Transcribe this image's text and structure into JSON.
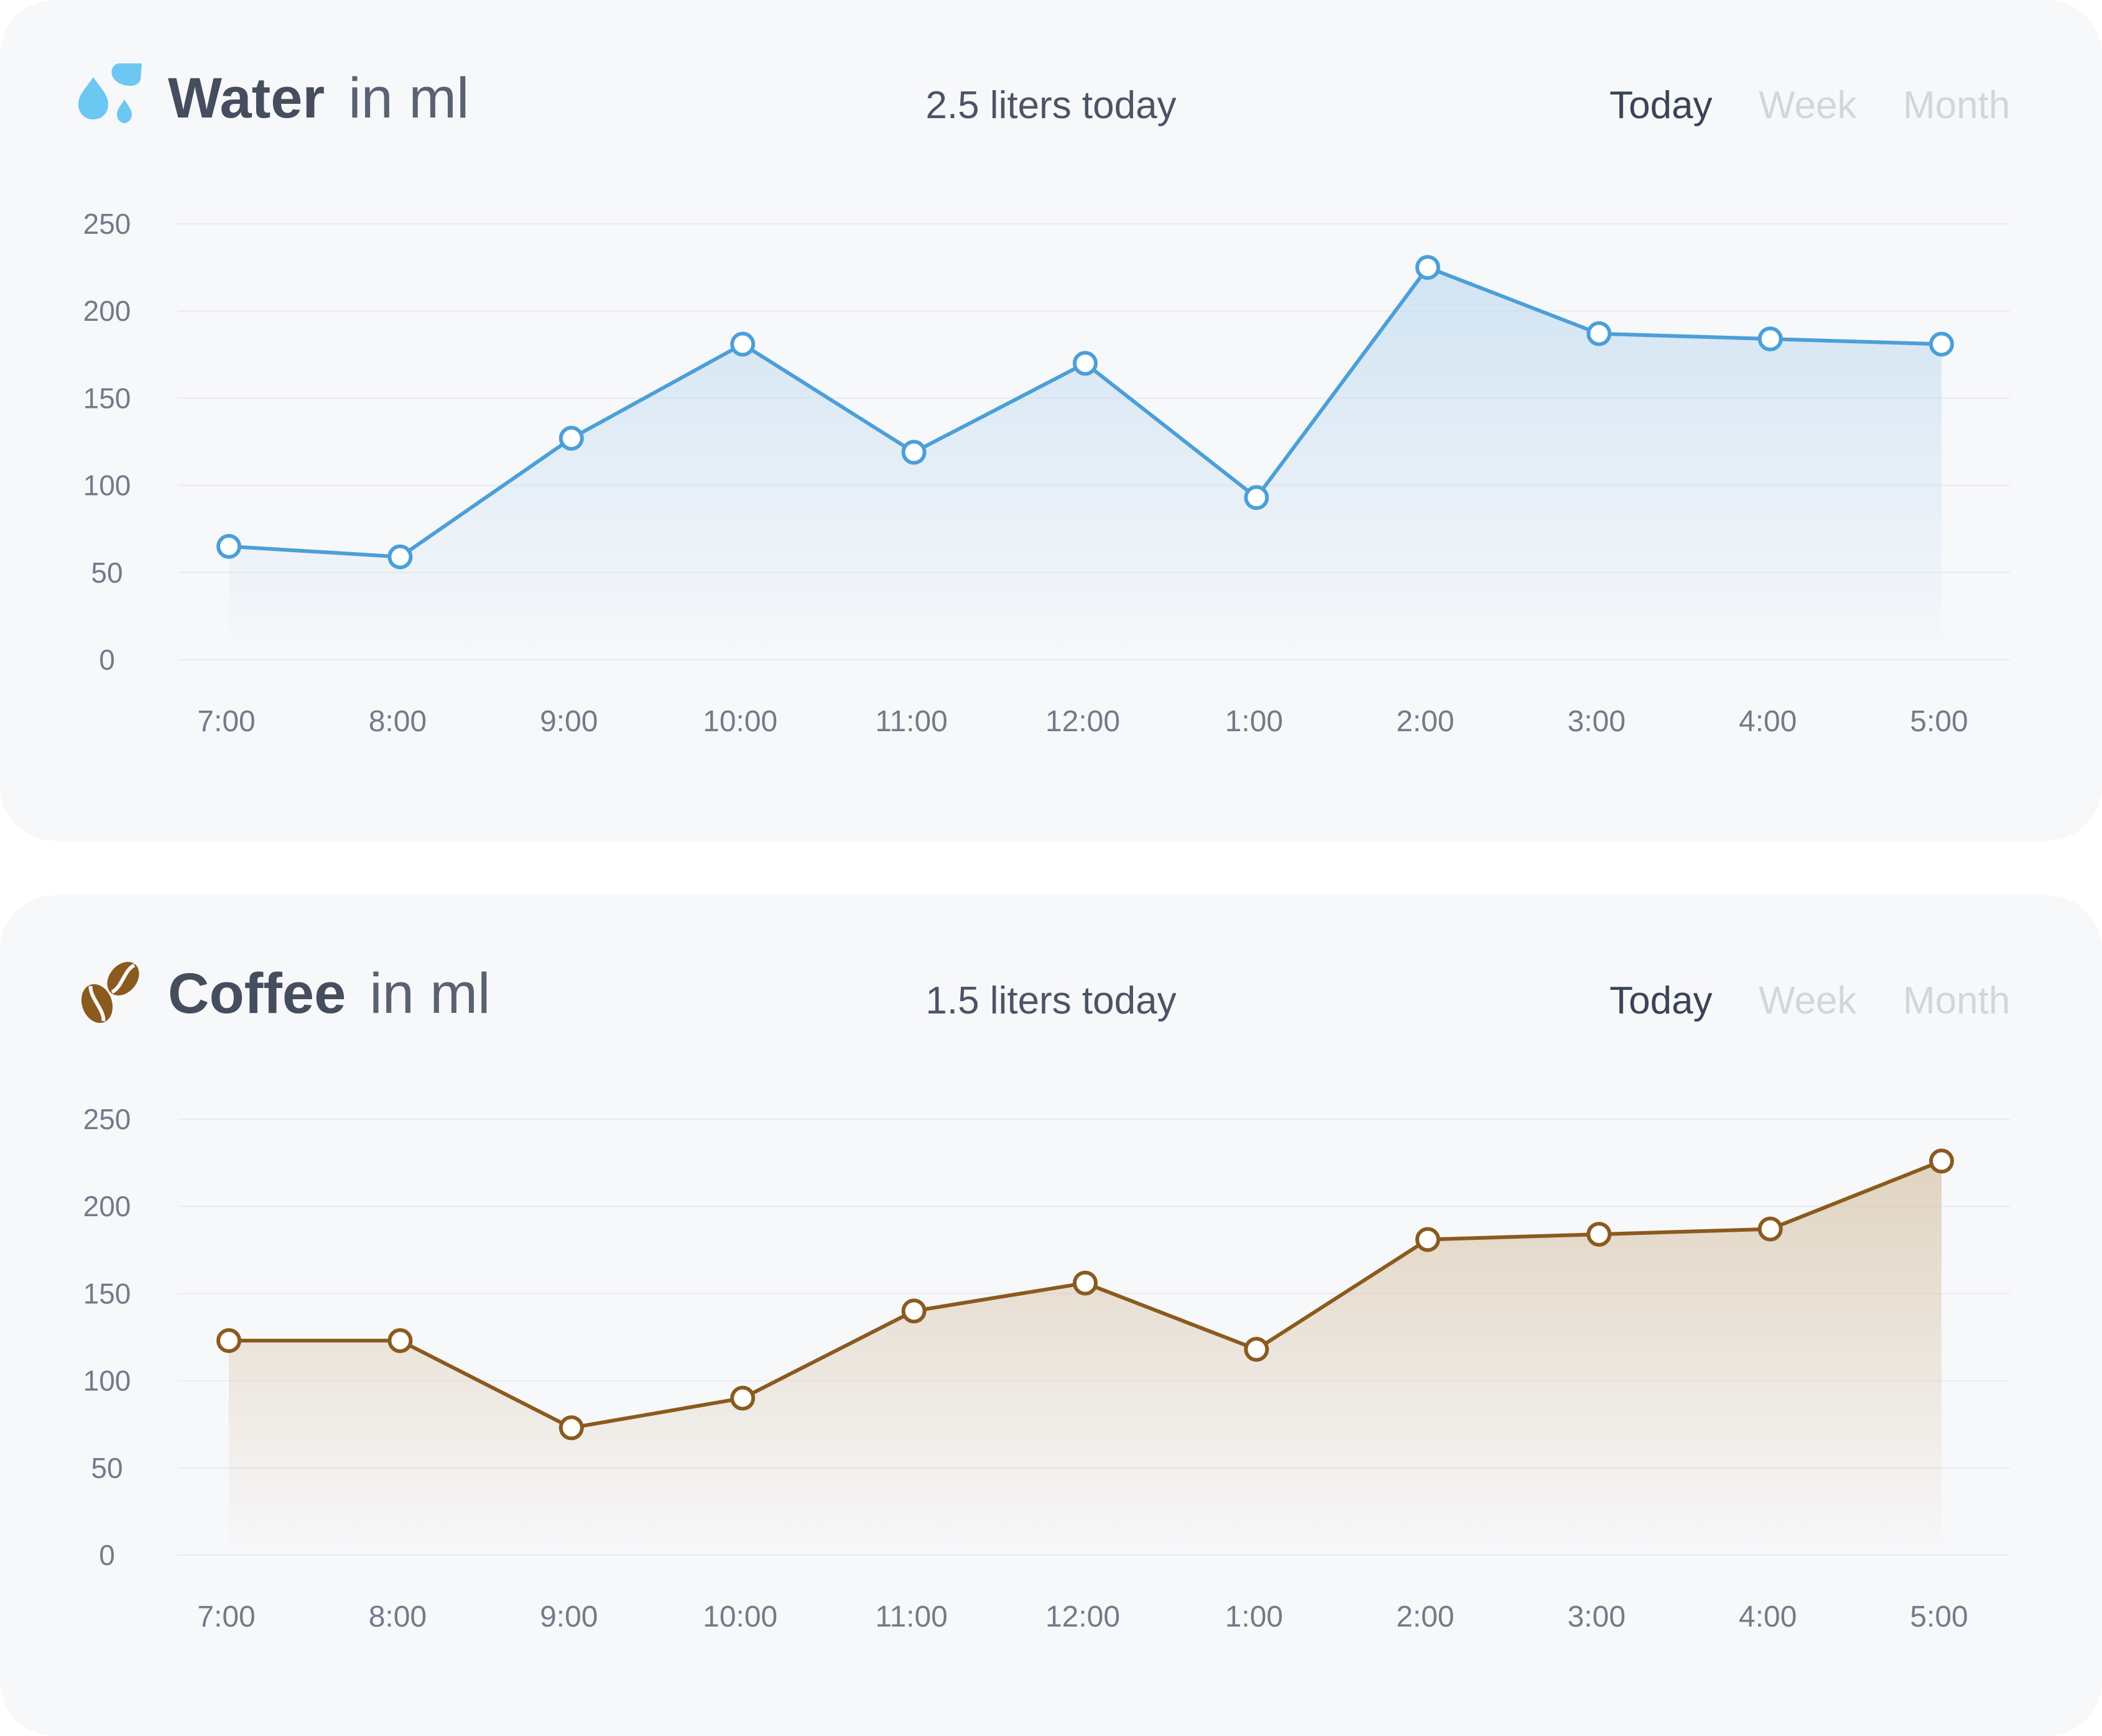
{
  "cards": [
    {
      "id": "water",
      "title": "Water",
      "unit": "in ml",
      "summary": "2.5 liters today",
      "icon": "water-drops-icon",
      "tabs": [
        "Today",
        "Week",
        "Month"
      ],
      "active_tab": "Today",
      "colors": {
        "line": "#4c9fd8",
        "fill": "#c5ddf0",
        "icon": "#6cc7f2"
      }
    },
    {
      "id": "coffee",
      "title": "Coffee",
      "unit": "in ml",
      "summary": "1.5 liters today",
      "icon": "coffee-beans-icon",
      "tabs": [
        "Today",
        "Week",
        "Month"
      ],
      "active_tab": "Today",
      "colors": {
        "line": "#8b5a1e",
        "fill": "#d9c7ad",
        "icon": "#8b5a1e"
      }
    }
  ],
  "chart_data": [
    {
      "type": "line",
      "title": "Water in ml",
      "xlabel": "",
      "ylabel": "",
      "categories": [
        "7:00",
        "8:00",
        "9:00",
        "10:00",
        "11:00",
        "12:00",
        "1:00",
        "2:00",
        "3:00",
        "4:00",
        "5:00"
      ],
      "series": [
        {
          "name": "Water",
          "values": [
            65,
            59,
            127,
            181,
            119,
            170,
            93,
            225,
            187,
            184,
            181
          ]
        }
      ],
      "ylim": [
        0,
        250
      ],
      "yticks": [
        0,
        50,
        100,
        150,
        200,
        250
      ],
      "grid": true,
      "area_fill": true
    },
    {
      "type": "line",
      "title": "Coffee in ml",
      "xlabel": "",
      "ylabel": "",
      "categories": [
        "7:00",
        "8:00",
        "9:00",
        "10:00",
        "11:00",
        "12:00",
        "1:00",
        "2:00",
        "3:00",
        "4:00",
        "5:00"
      ],
      "series": [
        {
          "name": "Coffee",
          "values": [
            123,
            123,
            73,
            90,
            140,
            156,
            118,
            181,
            184,
            187,
            226
          ]
        }
      ],
      "ylim": [
        0,
        250
      ],
      "yticks": [
        0,
        50,
        100,
        150,
        200,
        250
      ],
      "grid": true,
      "area_fill": true
    }
  ]
}
